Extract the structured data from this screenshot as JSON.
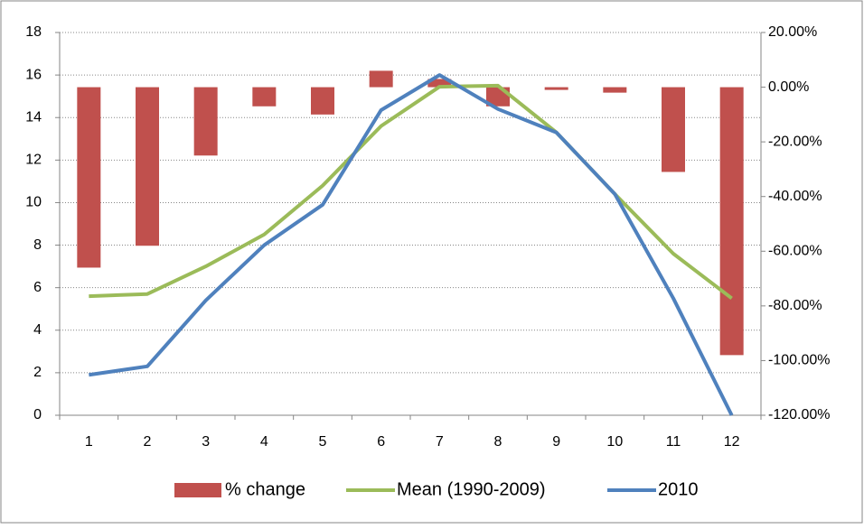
{
  "chart_data": {
    "type": "combo",
    "categories": [
      "1",
      "2",
      "3",
      "4",
      "5",
      "6",
      "7",
      "8",
      "9",
      "10",
      "11",
      "12"
    ],
    "series": [
      {
        "name": "% change",
        "type": "bar",
        "axis": "y2",
        "color": "#c0504d",
        "values": [
          -66,
          -58,
          -25,
          -7,
          -10,
          6,
          3,
          -7,
          -1,
          -2,
          -31,
          -98
        ]
      },
      {
        "name": "Mean (1990-2009)",
        "type": "line",
        "axis": "y",
        "color": "#9bbb59",
        "values": [
          5.6,
          5.7,
          7.0,
          8.5,
          10.8,
          13.6,
          15.45,
          15.5,
          13.3,
          10.4,
          7.6,
          5.5
        ]
      },
      {
        "name": "2010",
        "type": "line",
        "axis": "y",
        "color": "#4f81bd",
        "values": [
          1.9,
          2.3,
          5.4,
          8.0,
          9.9,
          14.35,
          16.0,
          14.4,
          13.3,
          10.4,
          5.5,
          0
        ]
      }
    ],
    "ylim": [
      0,
      18
    ],
    "yticks": [
      0,
      2,
      4,
      6,
      8,
      10,
      12,
      14,
      16,
      18
    ],
    "y2lim": [
      -120,
      20
    ],
    "y2ticks": [
      {
        "value": -120,
        "label": "-120.00%"
      },
      {
        "value": -100,
        "label": "-100.00%"
      },
      {
        "value": -80,
        "label": "-80.00%"
      },
      {
        "value": -60,
        "label": "-60.00%"
      },
      {
        "value": -40,
        "label": "-40.00%"
      },
      {
        "value": -20,
        "label": "-20.00%"
      },
      {
        "value": 0,
        "label": "0.00%"
      },
      {
        "value": 20,
        "label": "20.00%"
      }
    ],
    "grid": true,
    "legend": "bottom"
  }
}
